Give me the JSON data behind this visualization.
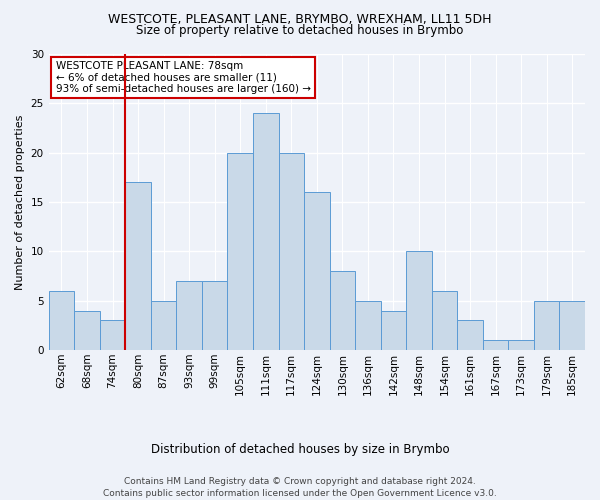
{
  "title": "WESTCOTE, PLEASANT LANE, BRYMBO, WREXHAM, LL11 5DH",
  "subtitle": "Size of property relative to detached houses in Brymbo",
  "xlabel": "Distribution of detached houses by size in Brymbo",
  "ylabel": "Number of detached properties",
  "categories": [
    "62sqm",
    "68sqm",
    "74sqm",
    "80sqm",
    "87sqm",
    "93sqm",
    "99sqm",
    "105sqm",
    "111sqm",
    "117sqm",
    "124sqm",
    "130sqm",
    "136sqm",
    "142sqm",
    "148sqm",
    "154sqm",
    "161sqm",
    "167sqm",
    "173sqm",
    "179sqm",
    "185sqm"
  ],
  "values": [
    6,
    4,
    3,
    17,
    5,
    7,
    7,
    20,
    24,
    20,
    16,
    8,
    5,
    4,
    10,
    6,
    3,
    1,
    1,
    5,
    5
  ],
  "bar_color": "#c9d9e8",
  "bar_edge_color": "#5b9bd5",
  "highlight_index": 2,
  "annotation_title": "WESTCOTE PLEASANT LANE: 78sqm",
  "annotation_line1": "← 6% of detached houses are smaller (11)",
  "annotation_line2": "93% of semi-detached houses are larger (160) →",
  "annotation_box_color": "#ffffff",
  "annotation_box_edge_color": "#cc0000",
  "ylim": [
    0,
    30
  ],
  "yticks": [
    0,
    5,
    10,
    15,
    20,
    25,
    30
  ],
  "footer1": "Contains HM Land Registry data © Crown copyright and database right 2024.",
  "footer2": "Contains public sector information licensed under the Open Government Licence v3.0.",
  "background_color": "#eef2f9",
  "title_fontsize": 9,
  "subtitle_fontsize": 8.5,
  "ylabel_fontsize": 8,
  "xlabel_fontsize": 8.5,
  "tick_fontsize": 7.5,
  "annotation_fontsize": 7.5,
  "footer_fontsize": 6.5
}
